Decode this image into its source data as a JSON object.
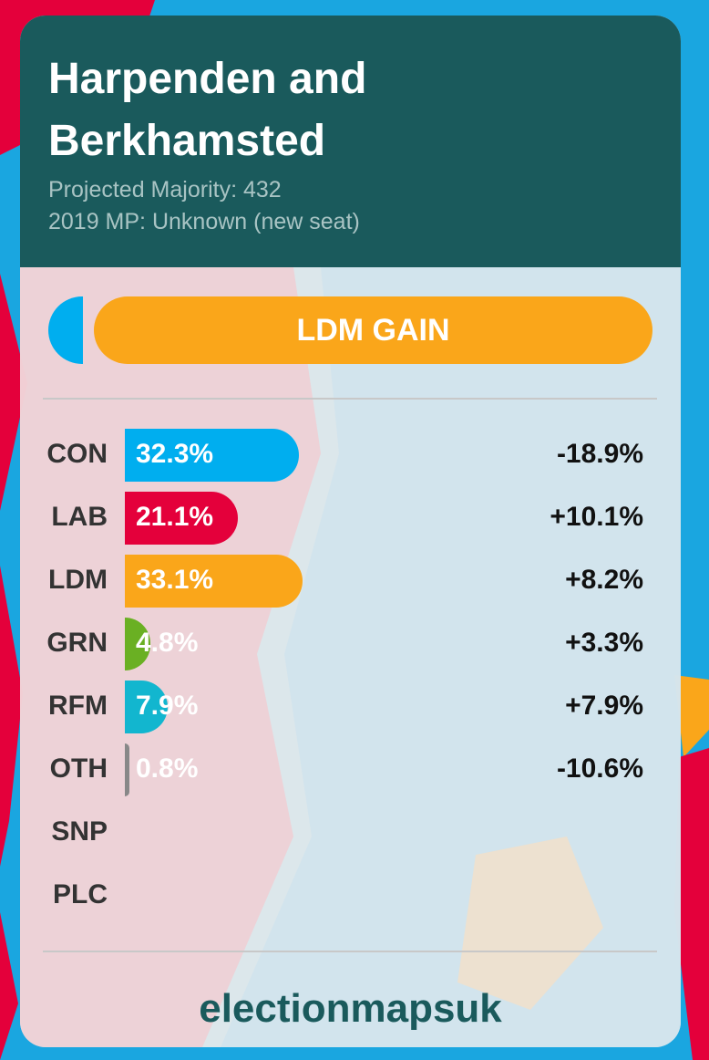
{
  "chart_data": {
    "type": "bar",
    "title": "Harpenden and Berkhamsted",
    "subtitle_lines": [
      "Projected Majority: 432",
      "2019 MP: Unknown (new seat)"
    ],
    "result": "LDM GAIN",
    "categories": [
      "CON",
      "LAB",
      "LDM",
      "GRN",
      "RFM",
      "OTH",
      "SNP",
      "PLC"
    ],
    "values": [
      32.3,
      21.1,
      33.1,
      4.8,
      7.9,
      0.8,
      null,
      null
    ],
    "value_labels": [
      "32.3%",
      "21.1%",
      "33.1%",
      "4.8%",
      "7.9%",
      "0.8%",
      null,
      null
    ],
    "colors": [
      "#00aeef",
      "#e4003b",
      "#faa61a",
      "#6ab023",
      "#12b6cf",
      "#888888",
      null,
      null
    ],
    "changes": [
      "-18.9%",
      "+10.1%",
      "+8.2%",
      "+3.3%",
      "+7.9%",
      "-10.6%",
      null,
      null
    ],
    "footer": "electionmapsuk"
  }
}
